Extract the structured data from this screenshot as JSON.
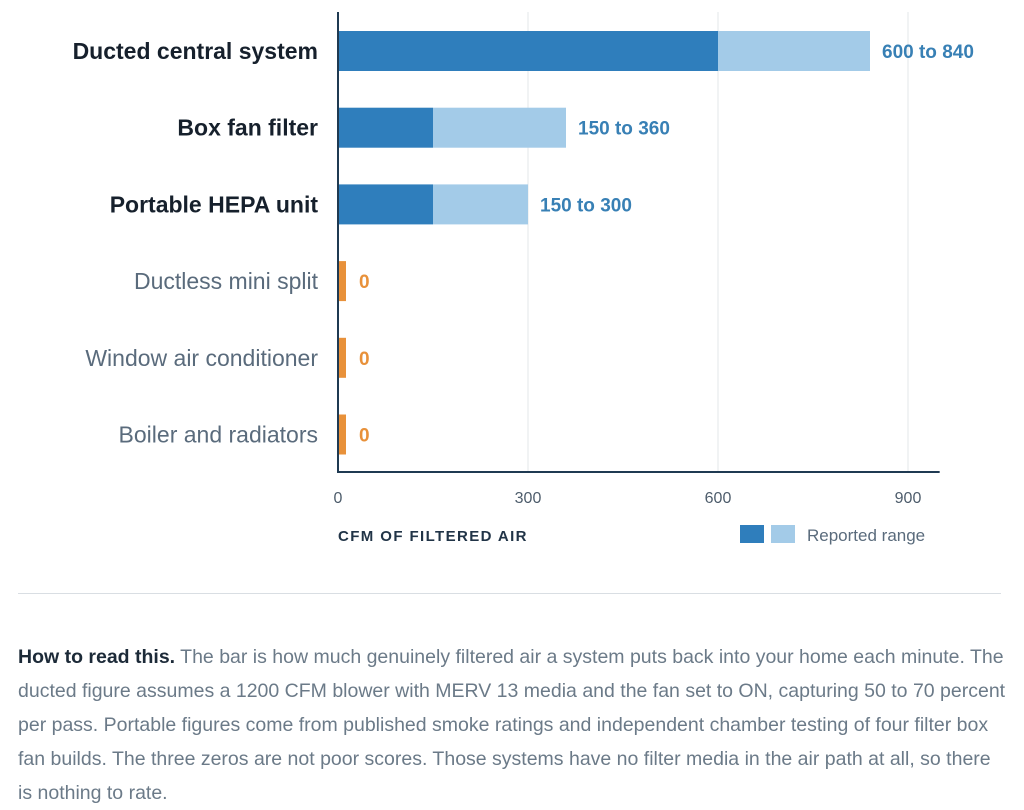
{
  "chart_data": {
    "type": "bar",
    "orientation": "horizontal",
    "stacked": true,
    "categories": [
      "Ducted central system",
      "Box fan filter",
      "Portable HEPA unit",
      "Ductless mini split",
      "Window air conditioner",
      "Boiler and radiators"
    ],
    "bold_categories": [
      "Ducted central system",
      "Box fan filter",
      "Portable HEPA unit"
    ],
    "low_values": [
      600,
      150,
      150,
      0,
      0,
      0
    ],
    "high_values": [
      840,
      360,
      300,
      0,
      0,
      0
    ],
    "value_labels": [
      "600 to 840",
      "150 to 360",
      "150 to 300",
      "0",
      "0",
      "0"
    ],
    "xlim": [
      0,
      950
    ],
    "xticks": [
      0,
      300,
      600,
      900
    ],
    "xtick_labels": [
      "0",
      "300",
      "600",
      "900"
    ],
    "xlabel": "CFM OF FILTERED AIR",
    "legend": {
      "label": "Reported range",
      "placement": "bottom-right"
    },
    "grid": "vertical",
    "colors": {
      "base": "#2f7ebc",
      "range": "#a3cbe8",
      "zero": "#e8913a",
      "value_text": "#3880b5",
      "zero_text": "#e8913a",
      "axis": "#1f3a52",
      "grid": "#e3e7ea"
    }
  },
  "note": {
    "lead": "How to read this.",
    "body": " The bar is how much genuinely filtered air a system puts back into your home each minute. The ducted figure assumes a 1200 CFM blower with MERV 13 media and the fan set to ON, capturing 50 to 70 percent per pass. Portable figures come from published smoke ratings and independent chamber testing of four filter box fan builds. The three zeros are not poor scores. Those systems have no filter media in the air path at all, so there is nothing to rate."
  }
}
